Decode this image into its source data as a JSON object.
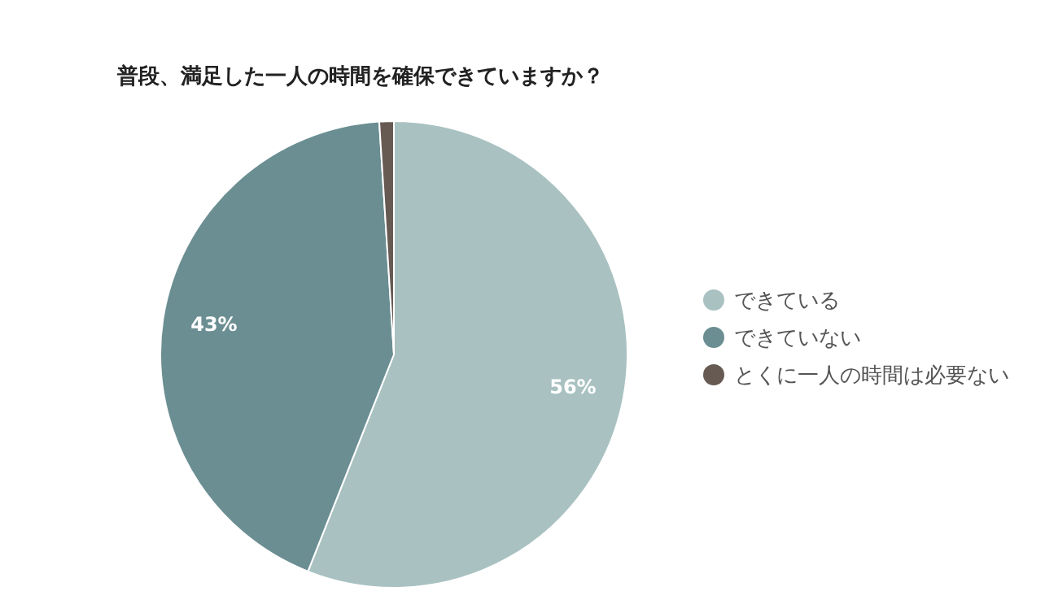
{
  "chart_data": {
    "type": "pie",
    "title": "普段、満足した一人の時間を確保できていますか？",
    "categories": [
      "できている",
      "できていない",
      "とくに一人の時間は必要ない"
    ],
    "values": [
      56,
      43,
      1
    ],
    "value_labels": [
      "56%",
      "43%",
      null
    ],
    "colors": [
      "#a9c1c1",
      "#6b8e92",
      "#675a52"
    ],
    "legend": "right"
  }
}
